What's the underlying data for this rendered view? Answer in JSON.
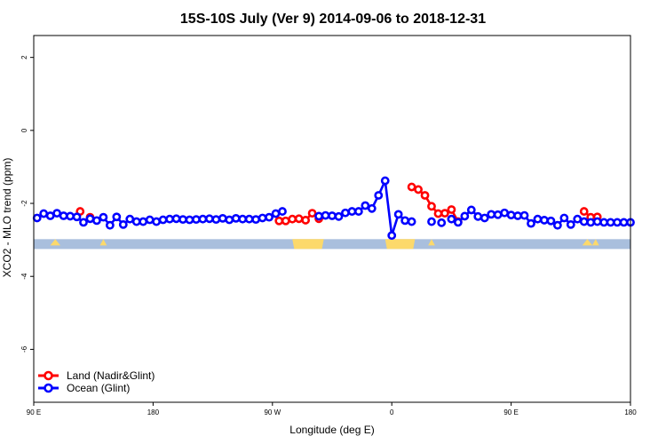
{
  "chart_data": {
    "type": "line",
    "title": "15S-10S July (Ver 9)   2014-09-06 to 2018-12-31",
    "xlabel": "Longitude (deg E)",
    "ylabel": "XCO2 - MLO trend (ppm)",
    "xlim": [
      90,
      450
    ],
    "ylim": [
      -7.45,
      2.6
    ],
    "x_ticks": [
      {
        "value": 90,
        "label": "90 E"
      },
      {
        "value": 162,
        "label": "180"
      },
      {
        "value": 234,
        "label": "90 W"
      },
      {
        "value": 306,
        "label": "0"
      },
      {
        "value": 378,
        "label": "90 E"
      },
      {
        "value": 450,
        "label": "180"
      }
    ],
    "y_ticks": [
      {
        "value": 2,
        "label": "2"
      },
      {
        "value": 0,
        "label": "0"
      },
      {
        "value": -2,
        "label": "-2"
      },
      {
        "value": -4,
        "label": "-4"
      },
      {
        "value": -6,
        "label": "-6"
      }
    ],
    "grid": false,
    "legend_position": "bottom-left",
    "colors": {
      "land": "#ff0000",
      "ocean": "#0000ff",
      "map_ocean": "#a9bfdd",
      "map_land": "#fcd96b"
    },
    "land_mask_band": {
      "y_top": -2.98,
      "y_bottom": -3.25,
      "land_x_ranges": [
        [
          101,
          105,
          "s"
        ],
        [
          131,
          133,
          "s"
        ],
        [
          246,
          265,
          "f"
        ],
        [
          302,
          320,
          "f"
        ],
        [
          329,
          331,
          "s"
        ],
        [
          422,
          426,
          "s"
        ],
        [
          428,
          430,
          "s"
        ]
      ]
    },
    "series": [
      {
        "name": "Land (Nadir&Glint)",
        "key": "land",
        "color": "#ff0000",
        "x": [
          118,
          124,
          238,
          242,
          246,
          250,
          254,
          258,
          262,
          318,
          322,
          326,
          330,
          334,
          338,
          342,
          346,
          422,
          426,
          430
        ],
        "y": [
          -2.22,
          -2.38,
          -2.48,
          -2.48,
          -2.43,
          -2.42,
          -2.46,
          -2.27,
          -2.42,
          -1.55,
          -1.62,
          -1.78,
          -2.08,
          -2.28,
          -2.27,
          -2.17,
          -2.5,
          -2.22,
          -2.38,
          -2.37
        ]
      },
      {
        "name": "Ocean (Glint)",
        "key": "ocean",
        "color": "#0000ff",
        "x": [
          92,
          96,
          100,
          104,
          108,
          112,
          116,
          120,
          124,
          128,
          132,
          136,
          140,
          144,
          148,
          152,
          156,
          160,
          164,
          168,
          172,
          176,
          180,
          184,
          188,
          192,
          196,
          200,
          204,
          208,
          212,
          216,
          220,
          224,
          228,
          232,
          236,
          240,
          262,
          266,
          270,
          274,
          278,
          282,
          286,
          290,
          294,
          298,
          302,
          306,
          310,
          314,
          318,
          330,
          336,
          342,
          346,
          350,
          354,
          358,
          362,
          366,
          370,
          374,
          378,
          382,
          386,
          390,
          394,
          398,
          402,
          406,
          410,
          414,
          418,
          422,
          426,
          430,
          434,
          438,
          442,
          446,
          450
        ],
        "y": [
          -2.4,
          -2.28,
          -2.34,
          -2.27,
          -2.34,
          -2.35,
          -2.37,
          -2.52,
          -2.42,
          -2.47,
          -2.38,
          -2.6,
          -2.37,
          -2.58,
          -2.43,
          -2.5,
          -2.5,
          -2.45,
          -2.5,
          -2.45,
          -2.43,
          -2.42,
          -2.44,
          -2.45,
          -2.44,
          -2.43,
          -2.42,
          -2.44,
          -2.41,
          -2.45,
          -2.41,
          -2.43,
          -2.43,
          -2.44,
          -2.4,
          -2.38,
          -2.28,
          -2.22,
          -2.35,
          -2.33,
          -2.34,
          -2.36,
          -2.26,
          -2.22,
          -2.22,
          -2.06,
          -2.14,
          -1.78,
          -1.38,
          -2.88,
          -2.3,
          -2.47,
          -2.5,
          -2.5,
          -2.53,
          -2.43,
          -2.52,
          -2.35,
          -2.18,
          -2.36,
          -2.4,
          -2.3,
          -2.31,
          -2.26,
          -2.32,
          -2.34,
          -2.33,
          -2.55,
          -2.43,
          -2.46,
          -2.48,
          -2.6,
          -2.4,
          -2.58,
          -2.43,
          -2.5,
          -2.52,
          -2.5,
          -2.52,
          -2.52,
          -2.52,
          -2.52,
          -2.52
        ]
      }
    ]
  }
}
